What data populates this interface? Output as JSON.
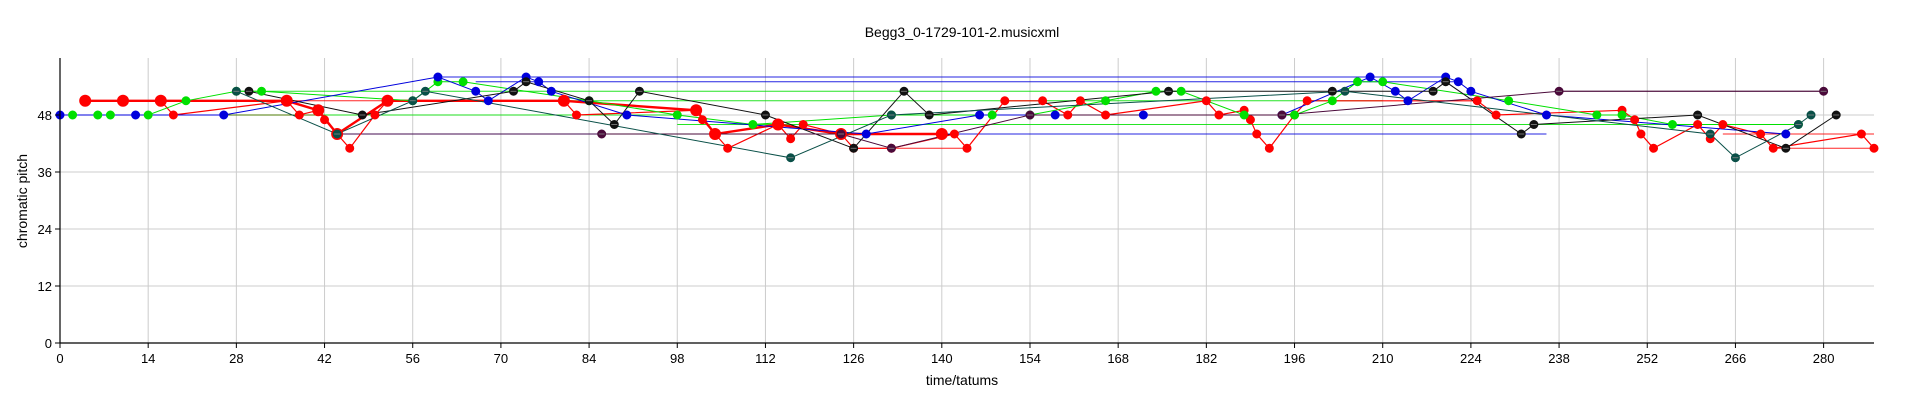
{
  "chart_data": {
    "type": "scatter",
    "title": "Begg3_0-1729-101-2.musicxml",
    "xlabel": "time/tatums",
    "ylabel": "chromatic pitch",
    "xlim": [
      0,
      288
    ],
    "ylim": [
      0,
      60
    ],
    "xticks": [
      0,
      14,
      28,
      42,
      56,
      70,
      84,
      98,
      112,
      126,
      140,
      154,
      168,
      182,
      196,
      210,
      224,
      238,
      252,
      266,
      280
    ],
    "yticks": [
      0,
      12,
      24,
      36,
      48
    ],
    "grid": true,
    "colors": {
      "red": "#ff0000",
      "green": "#00e000",
      "blue": "#0000dd",
      "black": "#111111",
      "purple": "#4a0a3a",
      "teal": "#0a5048",
      "olive": "#556b00"
    },
    "series": [
      {
        "color": "red",
        "line_width": 1.2,
        "points": [
          [
            4,
            51
          ],
          [
            10,
            51
          ],
          [
            16,
            51
          ],
          [
            18,
            48
          ],
          [
            36,
            51
          ],
          [
            38,
            48
          ],
          [
            41,
            49
          ],
          [
            42,
            47
          ],
          [
            44,
            44
          ],
          [
            46,
            41
          ],
          [
            50,
            48
          ],
          [
            52,
            51
          ],
          [
            80,
            51
          ],
          [
            82,
            48
          ],
          [
            101,
            49
          ],
          [
            102,
            47
          ],
          [
            104,
            44
          ],
          [
            106,
            41
          ],
          [
            114,
            46
          ],
          [
            116,
            43
          ],
          [
            118,
            46
          ],
          [
            124,
            44
          ],
          [
            126,
            41
          ],
          [
            132,
            41
          ],
          [
            142,
            44
          ],
          [
            144,
            41
          ],
          [
            150,
            51
          ],
          [
            156,
            51
          ],
          [
            160,
            48
          ],
          [
            162,
            51
          ],
          [
            166,
            48
          ],
          [
            182,
            51
          ],
          [
            184,
            48
          ],
          [
            188,
            49
          ],
          [
            189,
            47
          ],
          [
            190,
            44
          ],
          [
            192,
            41
          ],
          [
            196,
            48
          ],
          [
            198,
            51
          ],
          [
            225,
            51
          ],
          [
            228,
            48
          ],
          [
            248,
            49
          ],
          [
            250,
            47
          ],
          [
            251,
            44
          ],
          [
            253,
            41
          ],
          [
            260,
            46
          ],
          [
            262,
            43
          ],
          [
            264,
            46
          ],
          [
            270,
            44
          ],
          [
            272,
            41
          ],
          [
            286,
            44
          ],
          [
            288,
            41
          ]
        ]
      },
      {
        "color": "red",
        "line_width": 2.4,
        "points": [
          [
            4,
            51
          ],
          [
            10,
            51
          ],
          [
            16,
            51
          ],
          [
            36,
            51
          ],
          [
            41,
            49
          ],
          [
            44,
            44
          ],
          [
            52,
            51
          ],
          [
            80,
            51
          ],
          [
            101,
            49
          ],
          [
            104,
            44
          ],
          [
            114,
            46
          ],
          [
            124,
            44
          ],
          [
            140,
            44
          ]
        ]
      },
      {
        "color": "green",
        "line_width": 1,
        "points": [
          [
            2,
            48
          ],
          [
            6,
            48
          ],
          [
            8,
            48
          ],
          [
            14,
            48
          ],
          [
            20,
            51
          ],
          [
            28,
            53
          ],
          [
            32,
            53
          ],
          [
            56,
            51
          ],
          [
            60,
            55
          ],
          [
            64,
            55
          ],
          [
            84,
            51
          ],
          [
            98,
            48
          ],
          [
            110,
            46
          ],
          [
            132,
            48
          ],
          [
            148,
            48
          ],
          [
            154,
            48
          ],
          [
            166,
            51
          ],
          [
            174,
            53
          ],
          [
            178,
            53
          ],
          [
            188,
            48
          ],
          [
            196,
            48
          ],
          [
            202,
            51
          ],
          [
            206,
            55
          ],
          [
            210,
            55
          ],
          [
            230,
            51
          ],
          [
            244,
            48
          ],
          [
            248,
            48
          ],
          [
            256,
            46
          ],
          [
            276,
            46
          ]
        ]
      },
      {
        "color": "blue",
        "line_width": 1,
        "points": [
          [
            0,
            48
          ],
          [
            12,
            48
          ],
          [
            26,
            48
          ],
          [
            60,
            56
          ],
          [
            66,
            53
          ],
          [
            68,
            51
          ],
          [
            74,
            56
          ],
          [
            76,
            55
          ],
          [
            78,
            53
          ],
          [
            90,
            48
          ],
          [
            128,
            44
          ],
          [
            146,
            48
          ],
          [
            158,
            48
          ],
          [
            172,
            48
          ],
          [
            194,
            48
          ],
          [
            208,
            56
          ],
          [
            212,
            53
          ],
          [
            214,
            51
          ],
          [
            220,
            56
          ],
          [
            222,
            55
          ],
          [
            224,
            53
          ],
          [
            236,
            48
          ],
          [
            274,
            44
          ]
        ]
      },
      {
        "color": "black",
        "line_width": 1,
        "points": [
          [
            30,
            53
          ],
          [
            48,
            48
          ],
          [
            72,
            53
          ],
          [
            74,
            55
          ],
          [
            84,
            51
          ],
          [
            88,
            46
          ],
          [
            92,
            53
          ],
          [
            112,
            48
          ],
          [
            126,
            41
          ],
          [
            134,
            53
          ],
          [
            138,
            48
          ],
          [
            176,
            53
          ],
          [
            202,
            53
          ],
          [
            218,
            53
          ],
          [
            220,
            55
          ],
          [
            232,
            44
          ],
          [
            234,
            46
          ],
          [
            260,
            48
          ],
          [
            274,
            41
          ],
          [
            282,
            48
          ]
        ]
      },
      {
        "color": "purple",
        "line_width": 1,
        "points": [
          [
            86,
            44
          ],
          [
            124,
            44
          ],
          [
            132,
            41
          ],
          [
            154,
            48
          ],
          [
            194,
            48
          ],
          [
            238,
            53
          ],
          [
            280,
            53
          ]
        ]
      },
      {
        "color": "teal",
        "line_width": 1,
        "points": [
          [
            28,
            53
          ],
          [
            44,
            44
          ],
          [
            56,
            51
          ],
          [
            58,
            53
          ],
          [
            116,
            39
          ],
          [
            132,
            48
          ],
          [
            204,
            53
          ],
          [
            262,
            44
          ],
          [
            266,
            39
          ],
          [
            276,
            46
          ],
          [
            278,
            48
          ]
        ]
      }
    ],
    "sustain_lines": [
      {
        "color": "green",
        "x0": 28,
        "x1": 178,
        "y": 53
      },
      {
        "color": "green",
        "x0": 56,
        "x1": 210,
        "y": 51
      },
      {
        "color": "green",
        "x0": 2,
        "x1": 98,
        "y": 48
      },
      {
        "color": "green",
        "x0": 98,
        "x1": 276,
        "y": 46
      },
      {
        "color": "blue",
        "x0": 60,
        "x1": 220,
        "y": 56
      },
      {
        "color": "blue",
        "x0": 66,
        "x1": 222,
        "y": 55
      },
      {
        "color": "blue",
        "x0": 44,
        "x1": 236,
        "y": 44
      },
      {
        "color": "red",
        "x0": 4,
        "x1": 52,
        "y": 51
      },
      {
        "color": "red",
        "x0": 126,
        "x1": 144,
        "y": 41
      },
      {
        "color": "red",
        "x0": 264,
        "x1": 288,
        "y": 44
      },
      {
        "color": "red",
        "x0": 272,
        "x1": 288,
        "y": 41
      },
      {
        "color": "purple",
        "x0": 44,
        "x1": 86,
        "y": 44
      },
      {
        "color": "purple",
        "x0": 238,
        "x1": 280,
        "y": 53
      },
      {
        "color": "olive",
        "x0": 0,
        "x1": 42,
        "y": 48
      }
    ]
  }
}
